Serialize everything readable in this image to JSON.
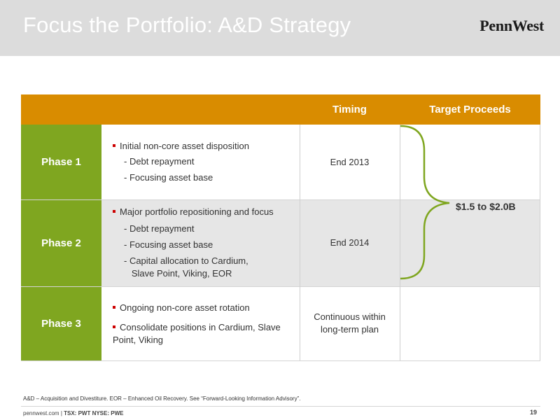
{
  "header": {
    "title": "Focus the Portfolio: A&D Strategy",
    "logo": "PennWest"
  },
  "table": {
    "columns": {
      "timing": "Timing",
      "proceeds": "Target Proceeds"
    },
    "proceeds_value": "$1.5 to $2.0B",
    "rows": [
      {
        "phase": "Phase 1",
        "bullets": [
          "Initial non-core asset disposition"
        ],
        "subs": [
          "- Debt repayment",
          "- Focusing asset base"
        ],
        "timing": "End 2013"
      },
      {
        "phase": "Phase 2",
        "bullets": [
          "Major portfolio repositioning and focus"
        ],
        "subs": [
          "- Debt repayment",
          "- Focusing asset base",
          "- Capital allocation to Cardium,\n   Slave Point, Viking, EOR"
        ],
        "timing": "End 2014"
      },
      {
        "phase": "Phase 3",
        "bullets": [
          "Ongoing non-core asset rotation",
          "Consolidate positions in Cardium, Slave\nPoint, Viking"
        ],
        "subs": [],
        "timing": "Continuous within\nlong-term plan"
      }
    ]
  },
  "footnote": "A&D – Acquisition and Divestiture. EOR – Enhanced Oil Recovery. See “Forward-Looking Information Advisory”.",
  "footer": {
    "site": "pennwest.com",
    "sep": " | ",
    "ticker": "TSX: PWT  NYSE: PWE",
    "page": "19"
  },
  "colors": {
    "orange": "#d98c00",
    "green": "#7fa620",
    "bullet_red": "#cc0000",
    "header_gray": "#dcdcdc",
    "row_gray": "#e6e6e6"
  }
}
